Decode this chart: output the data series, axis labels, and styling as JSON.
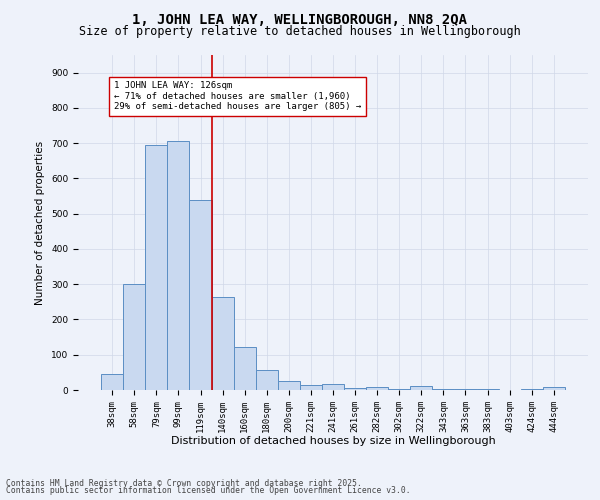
{
  "title": "1, JOHN LEA WAY, WELLINGBOROUGH, NN8 2QA",
  "subtitle": "Size of property relative to detached houses in Wellingborough",
  "xlabel": "Distribution of detached houses by size in Wellingborough",
  "ylabel": "Number of detached properties",
  "footnote1": "Contains HM Land Registry data © Crown copyright and database right 2025.",
  "footnote2": "Contains public sector information licensed under the Open Government Licence v3.0.",
  "categories": [
    "38sqm",
    "58sqm",
    "79sqm",
    "99sqm",
    "119sqm",
    "140sqm",
    "160sqm",
    "180sqm",
    "200sqm",
    "221sqm",
    "241sqm",
    "261sqm",
    "282sqm",
    "302sqm",
    "322sqm",
    "343sqm",
    "363sqm",
    "383sqm",
    "403sqm",
    "424sqm",
    "444sqm"
  ],
  "values": [
    45,
    300,
    695,
    705,
    540,
    265,
    122,
    58,
    25,
    15,
    18,
    7,
    9,
    2,
    10,
    2,
    2,
    2,
    0,
    2,
    8
  ],
  "bar_color": "#c9d9f0",
  "bar_edge_color": "#5b8ec4",
  "bar_linewidth": 0.7,
  "grid_color": "#d0d8e8",
  "background_color": "#eef2fa",
  "ylim": [
    0,
    950
  ],
  "yticks": [
    0,
    100,
    200,
    300,
    400,
    500,
    600,
    700,
    800,
    900
  ],
  "vline_x_index": 4.5,
  "vline_color": "#cc0000",
  "annotation_text": "1 JOHN LEA WAY: 126sqm\n← 71% of detached houses are smaller (1,960)\n29% of semi-detached houses are larger (805) →",
  "annotation_box_color": "#ffffff",
  "annotation_box_edge_color": "#cc0000",
  "annotation_fontsize": 6.5,
  "title_fontsize": 10,
  "subtitle_fontsize": 8.5,
  "xlabel_fontsize": 8,
  "ylabel_fontsize": 7.5,
  "tick_fontsize": 6.5,
  "footnote_fontsize": 5.8
}
